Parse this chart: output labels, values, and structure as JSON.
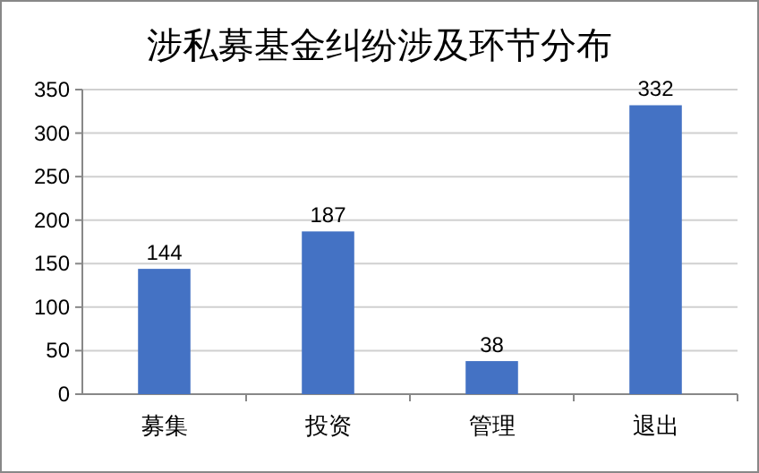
{
  "chart_data": {
    "type": "bar",
    "title": "涉私募基金纠纷涉及环节分布",
    "categories": [
      "募集",
      "投资",
      "管理",
      "退出"
    ],
    "values": [
      144,
      187,
      38,
      332
    ],
    "color": "#4472c4",
    "ylim": [
      0,
      350
    ],
    "yticks": [
      0,
      50,
      100,
      150,
      200,
      250,
      300,
      350
    ],
    "grid": "y",
    "data_labels": true
  }
}
